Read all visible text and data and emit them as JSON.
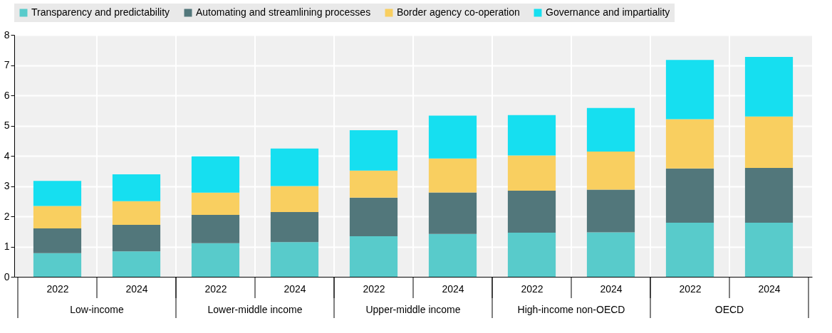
{
  "chart_data": {
    "type": "bar",
    "stacked": true,
    "categories": [
      "2022",
      "2024",
      "2022",
      "2024",
      "2022",
      "2024",
      "2022",
      "2024",
      "2022",
      "2024"
    ],
    "series": [
      {
        "name": "Transparency and predictability",
        "color": "#58cbcb",
        "values": [
          0.78,
          0.84,
          1.11,
          1.15,
          1.34,
          1.42,
          1.46,
          1.47,
          1.79,
          1.79
        ]
      },
      {
        "name": "Automating and streamlining processes",
        "color": "#52777b",
        "values": [
          0.82,
          0.88,
          0.94,
          0.99,
          1.28,
          1.37,
          1.39,
          1.41,
          1.79,
          1.81
        ]
      },
      {
        "name": "Border agency co-operation",
        "color": "#f9cf60",
        "values": [
          0.74,
          0.78,
          0.73,
          0.86,
          0.89,
          1.12,
          1.16,
          1.26,
          1.63,
          1.7
        ]
      },
      {
        "name": "Governance and impartiality",
        "color": "#16dff0",
        "values": [
          0.83,
          0.89,
          1.2,
          1.24,
          1.34,
          1.42,
          1.34,
          1.44,
          1.96,
          1.97
        ]
      }
    ],
    "annotations": [
      "Low-income",
      "Lower-middle income",
      "Upper-middle income",
      "High-income non-OECD",
      "OECD"
    ],
    "ylim": [
      0,
      8
    ],
    "yticks": [
      0,
      1,
      2,
      3,
      4,
      5,
      6,
      7,
      8
    ],
    "grid": true,
    "legend": "top"
  }
}
